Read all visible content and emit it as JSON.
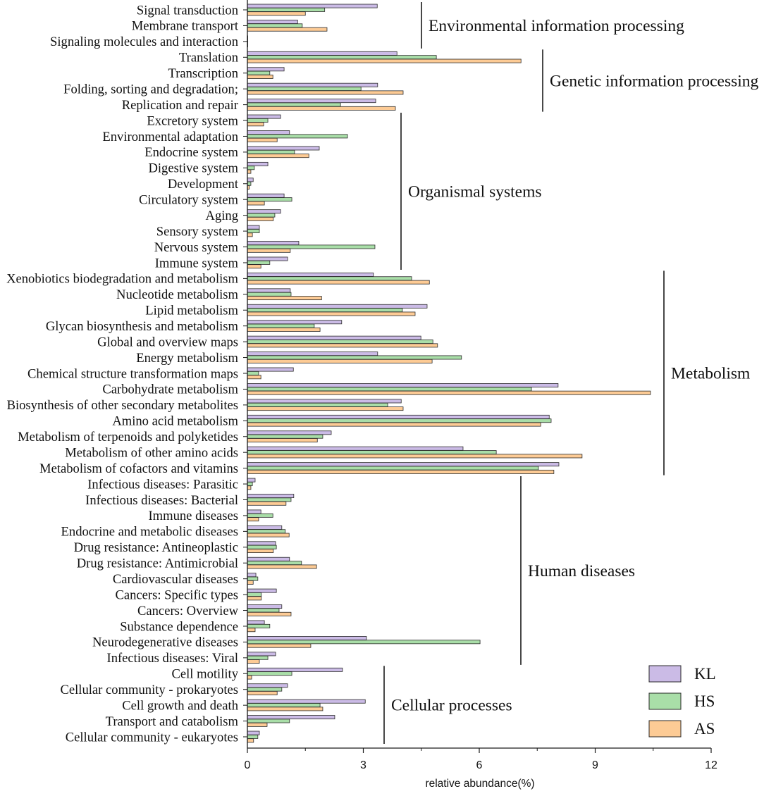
{
  "chart_data": {
    "type": "bar",
    "orientation": "horizontal",
    "xlabel": "relative abundance(%)",
    "xlim": [
      0,
      12
    ],
    "xticks": [
      0,
      3,
      6,
      9,
      12
    ],
    "grid": false,
    "legend_position": "bottom-right",
    "categories": [
      "Signal transduction",
      "Membrane transport",
      "Signaling molecules and interaction",
      "Translation",
      "Transcription",
      "Folding, sorting and degradation;",
      "Replication and repair",
      "Excretory system",
      "Environmental adaptation",
      "Endocrine system",
      "Digestive system",
      "Development",
      "Circulatory system",
      "Aging",
      "Sensory system",
      "Nervous system",
      "Immune system",
      "Xenobiotics biodegradation and metabolism",
      "Nucleotide metabolism",
      "Lipid metabolism",
      "Glycan biosynthesis and metabolism",
      "Global and overview maps",
      "Energy metabolism",
      "Chemical structure transformation maps",
      "Carbohydrate metabolism",
      "Biosynthesis of other secondary metabolites",
      "Amino acid metabolism",
      "Metabolism of terpenoids and polyketides",
      "Metabolism of other amino acids",
      "Metabolism of cofactors and vitamins",
      "Infectious diseases: Parasitic",
      "Infectious diseases: Bacterial",
      "Immune diseases",
      "Endocrine and metabolic diseases",
      "Drug resistance: Antineoplastic",
      "Drug resistance: Antimicrobial",
      "Cardiovascular diseases",
      "Cancers: Specific types",
      "Cancers: Overview",
      "Substance dependence",
      "Neurodegenerative diseases",
      "Infectious diseases: Viral",
      "Cell motility",
      "Cellular community - prokaryotes",
      "Cell growth and death",
      "Transport and catabolism",
      "Cellular community - eukaryotes"
    ],
    "series": [
      {
        "name": "KL",
        "color": "#cbbbe6",
        "values": [
          3.36,
          1.3,
          0.01,
          3.87,
          0.95,
          3.37,
          3.32,
          0.86,
          1.09,
          1.86,
          0.53,
          0.15,
          0.95,
          0.86,
          0.31,
          1.33,
          1.04,
          3.26,
          1.11,
          4.65,
          2.44,
          4.49,
          3.37,
          1.19,
          8.04,
          3.98,
          7.81,
          2.17,
          5.58,
          8.06,
          0.2,
          1.2,
          0.35,
          0.89,
          0.73,
          1.09,
          0.22,
          0.75,
          0.89,
          0.44,
          3.08,
          0.73,
          2.46,
          1.04,
          3.05,
          2.26,
          0.31
        ]
      },
      {
        "name": "HS",
        "color": "#a9dea8",
        "values": [
          2.0,
          1.42,
          0.01,
          4.89,
          0.58,
          2.94,
          2.41,
          0.53,
          2.59,
          1.22,
          0.18,
          0.09,
          1.15,
          0.71,
          0.31,
          3.3,
          0.58,
          4.25,
          1.13,
          4.01,
          1.73,
          4.8,
          5.54,
          0.29,
          7.35,
          3.63,
          7.86,
          1.95,
          6.44,
          7.53,
          0.13,
          1.13,
          0.66,
          0.98,
          0.75,
          1.4,
          0.27,
          0.36,
          0.82,
          0.58,
          6.02,
          0.53,
          1.15,
          0.89,
          1.88,
          1.09,
          0.27
        ]
      },
      {
        "name": "AS",
        "color": "#fdcb95",
        "values": [
          1.5,
          2.06,
          0.01,
          7.08,
          0.66,
          4.03,
          3.83,
          0.42,
          0.77,
          1.59,
          0.09,
          0.05,
          0.44,
          0.67,
          0.13,
          1.11,
          0.35,
          4.71,
          1.92,
          4.34,
          1.88,
          4.92,
          4.78,
          0.35,
          10.43,
          4.03,
          7.59,
          1.81,
          8.66,
          7.93,
          0.09,
          1.0,
          0.29,
          1.08,
          0.67,
          1.79,
          0.15,
          0.36,
          1.13,
          0.2,
          1.64,
          0.31,
          0.11,
          0.77,
          1.95,
          0.51,
          0.16
        ]
      }
    ],
    "groups": [
      {
        "name": "Environmental information processing",
        "first": 0,
        "last": 2
      },
      {
        "name": "Genetic information processing",
        "first": 3,
        "last": 6
      },
      {
        "name": "Organismal systems",
        "first": 7,
        "last": 16
      },
      {
        "name": "Metabolism",
        "first": 17,
        "last": 29
      },
      {
        "name": "Human diseases",
        "first": 30,
        "last": 41
      },
      {
        "name": "Cellular processes",
        "first": 42,
        "last": 46
      }
    ]
  }
}
